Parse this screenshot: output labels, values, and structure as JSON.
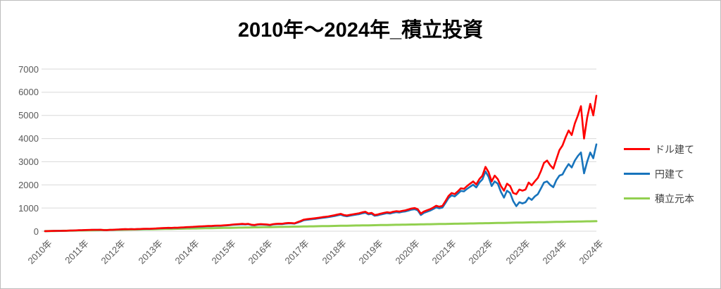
{
  "chart_data": {
    "type": "line",
    "title": "2010年～2024年_積立投資",
    "xlabel": "",
    "ylabel": "",
    "ylim": [
      0,
      7000
    ],
    "y_ticks": [
      0,
      1000,
      2000,
      3000,
      4000,
      5000,
      6000,
      7000
    ],
    "x_tick_labels": [
      "2010年",
      "2011年",
      "2012年",
      "2013年",
      "2014年",
      "2015年",
      "2016年",
      "2017年",
      "2018年",
      "2019年",
      "2020年",
      "2021年",
      "2022年",
      "2023年",
      "2024年",
      "2024年"
    ],
    "x_unit": "monthly samples, Jan 2010 - Dec 2024",
    "grid": "horizontal",
    "grid_color": "#d9d9d9",
    "legend_position": "right",
    "axis_label_color": "#595959",
    "series": [
      {
        "name": "ドル建て",
        "color": "#ff0000",
        "values": [
          2,
          5,
          9,
          13,
          16,
          14,
          17,
          21,
          26,
          31,
          36,
          42,
          47,
          52,
          55,
          59,
          62,
          60,
          63,
          52,
          48,
          57,
          62,
          70,
          77,
          84,
          89,
          86,
          91,
          85,
          93,
          98,
          103,
          106,
          102,
          112,
          120,
          127,
          133,
          139,
          146,
          142,
          153,
          149,
          160,
          167,
          176,
          184,
          190,
          199,
          206,
          212,
          220,
          228,
          224,
          236,
          243,
          239,
          252,
          262,
          272,
          288,
          298,
          306,
          315,
          308,
          318,
          280,
          268,
          296,
          308,
          298,
          292,
          274,
          304,
          318,
          326,
          322,
          344,
          356,
          352,
          342,
          392,
          440,
          500,
          520,
          535,
          550,
          565,
          585,
          605,
          620,
          640,
          665,
          690,
          720,
          750,
          700,
          680,
          705,
          730,
          752,
          775,
          815,
          840,
          765,
          790,
          700,
          720,
          760,
          790,
          820,
          800,
          840,
          865,
          850,
          880,
          900,
          940,
          980,
          1000,
          950,
          760,
          850,
          900,
          950,
          1020,
          1100,
          1060,
          1090,
          1300,
          1520,
          1650,
          1600,
          1720,
          1850,
          1830,
          1950,
          2050,
          2150,
          2020,
          2250,
          2400,
          2780,
          2550,
          2150,
          2400,
          2250,
          1950,
          1750,
          2050,
          1950,
          1650,
          1600,
          1800,
          1750,
          1800,
          2100,
          1980,
          2150,
          2300,
          2600,
          2950,
          3050,
          2850,
          2700,
          3100,
          3500,
          3700,
          4050,
          4350,
          4150,
          4650,
          5000,
          5400,
          4000,
          4900,
          5500,
          5000,
          5850
        ]
      },
      {
        "name": "円建て",
        "color": "#1874bc",
        "values": [
          2,
          5,
          8,
          12,
          15,
          13,
          16,
          20,
          24,
          29,
          34,
          40,
          44,
          49,
          52,
          56,
          59,
          57,
          60,
          49,
          45,
          54,
          59,
          66,
          73,
          80,
          85,
          82,
          87,
          81,
          89,
          94,
          98,
          101,
          97,
          107,
          114,
          121,
          127,
          133,
          139,
          135,
          146,
          142,
          152,
          159,
          167,
          175,
          181,
          190,
          196,
          202,
          210,
          217,
          213,
          225,
          231,
          227,
          240,
          249,
          259,
          274,
          283,
          291,
          299,
          293,
          302,
          266,
          255,
          281,
          293,
          283,
          277,
          260,
          289,
          302,
          310,
          306,
          327,
          338,
          334,
          325,
          372,
          418,
          475,
          494,
          508,
          522,
          537,
          556,
          575,
          589,
          608,
          632,
          655,
          684,
          712,
          665,
          646,
          670,
          694,
          714,
          736,
          774,
          798,
          727,
          750,
          665,
          684,
          722,
          750,
          779,
          760,
          798,
          822,
          808,
          836,
          855,
          893,
          931,
          950,
          900,
          700,
          790,
          840,
          890,
          955,
          1030,
          990,
          1020,
          1220,
          1430,
          1550,
          1500,
          1620,
          1740,
          1720,
          1830,
          1920,
          2010,
          1890,
          2100,
          2240,
          2580,
          2350,
          1950,
          2150,
          2050,
          1700,
          1450,
          1750,
          1650,
          1300,
          1080,
          1250,
          1200,
          1250,
          1450,
          1350,
          1500,
          1600,
          1850,
          2100,
          2150,
          2000,
          1900,
          2200,
          2400,
          2450,
          2700,
          2900,
          2750,
          3050,
          3250,
          3400,
          2500,
          3000,
          3400,
          3150,
          3750
        ]
      },
      {
        "name": "積立元本",
        "color": "#92d050",
        "values": [
          2,
          5,
          7,
          10,
          12,
          14,
          17,
          19,
          22,
          24,
          26,
          29,
          31,
          34,
          36,
          38,
          41,
          43,
          46,
          48,
          50,
          53,
          55,
          58,
          60,
          62,
          65,
          67,
          70,
          72,
          74,
          77,
          79,
          82,
          84,
          86,
          89,
          91,
          94,
          96,
          98,
          101,
          103,
          106,
          108,
          110,
          113,
          115,
          118,
          120,
          122,
          125,
          127,
          130,
          132,
          134,
          137,
          139,
          142,
          144,
          146,
          149,
          151,
          154,
          156,
          158,
          161,
          163,
          166,
          168,
          170,
          173,
          175,
          178,
          180,
          182,
          185,
          187,
          190,
          192,
          194,
          197,
          199,
          202,
          204,
          206,
          209,
          211,
          214,
          216,
          218,
          221,
          223,
          226,
          228,
          230,
          233,
          235,
          238,
          240,
          242,
          245,
          247,
          250,
          252,
          254,
          257,
          259,
          262,
          264,
          266,
          269,
          271,
          274,
          276,
          278,
          281,
          283,
          286,
          288,
          290,
          293,
          295,
          298,
          300,
          302,
          305,
          307,
          310,
          312,
          314,
          317,
          319,
          322,
          324,
          326,
          329,
          331,
          334,
          336,
          338,
          341,
          343,
          346,
          348,
          350,
          353,
          355,
          358,
          360,
          362,
          365,
          367,
          370,
          372,
          374,
          377,
          379,
          382,
          384,
          386,
          389,
          391,
          394,
          396,
          398,
          401,
          403,
          406,
          408,
          410,
          413,
          415,
          418,
          420,
          422,
          425,
          427,
          430,
          432
        ]
      }
    ]
  }
}
